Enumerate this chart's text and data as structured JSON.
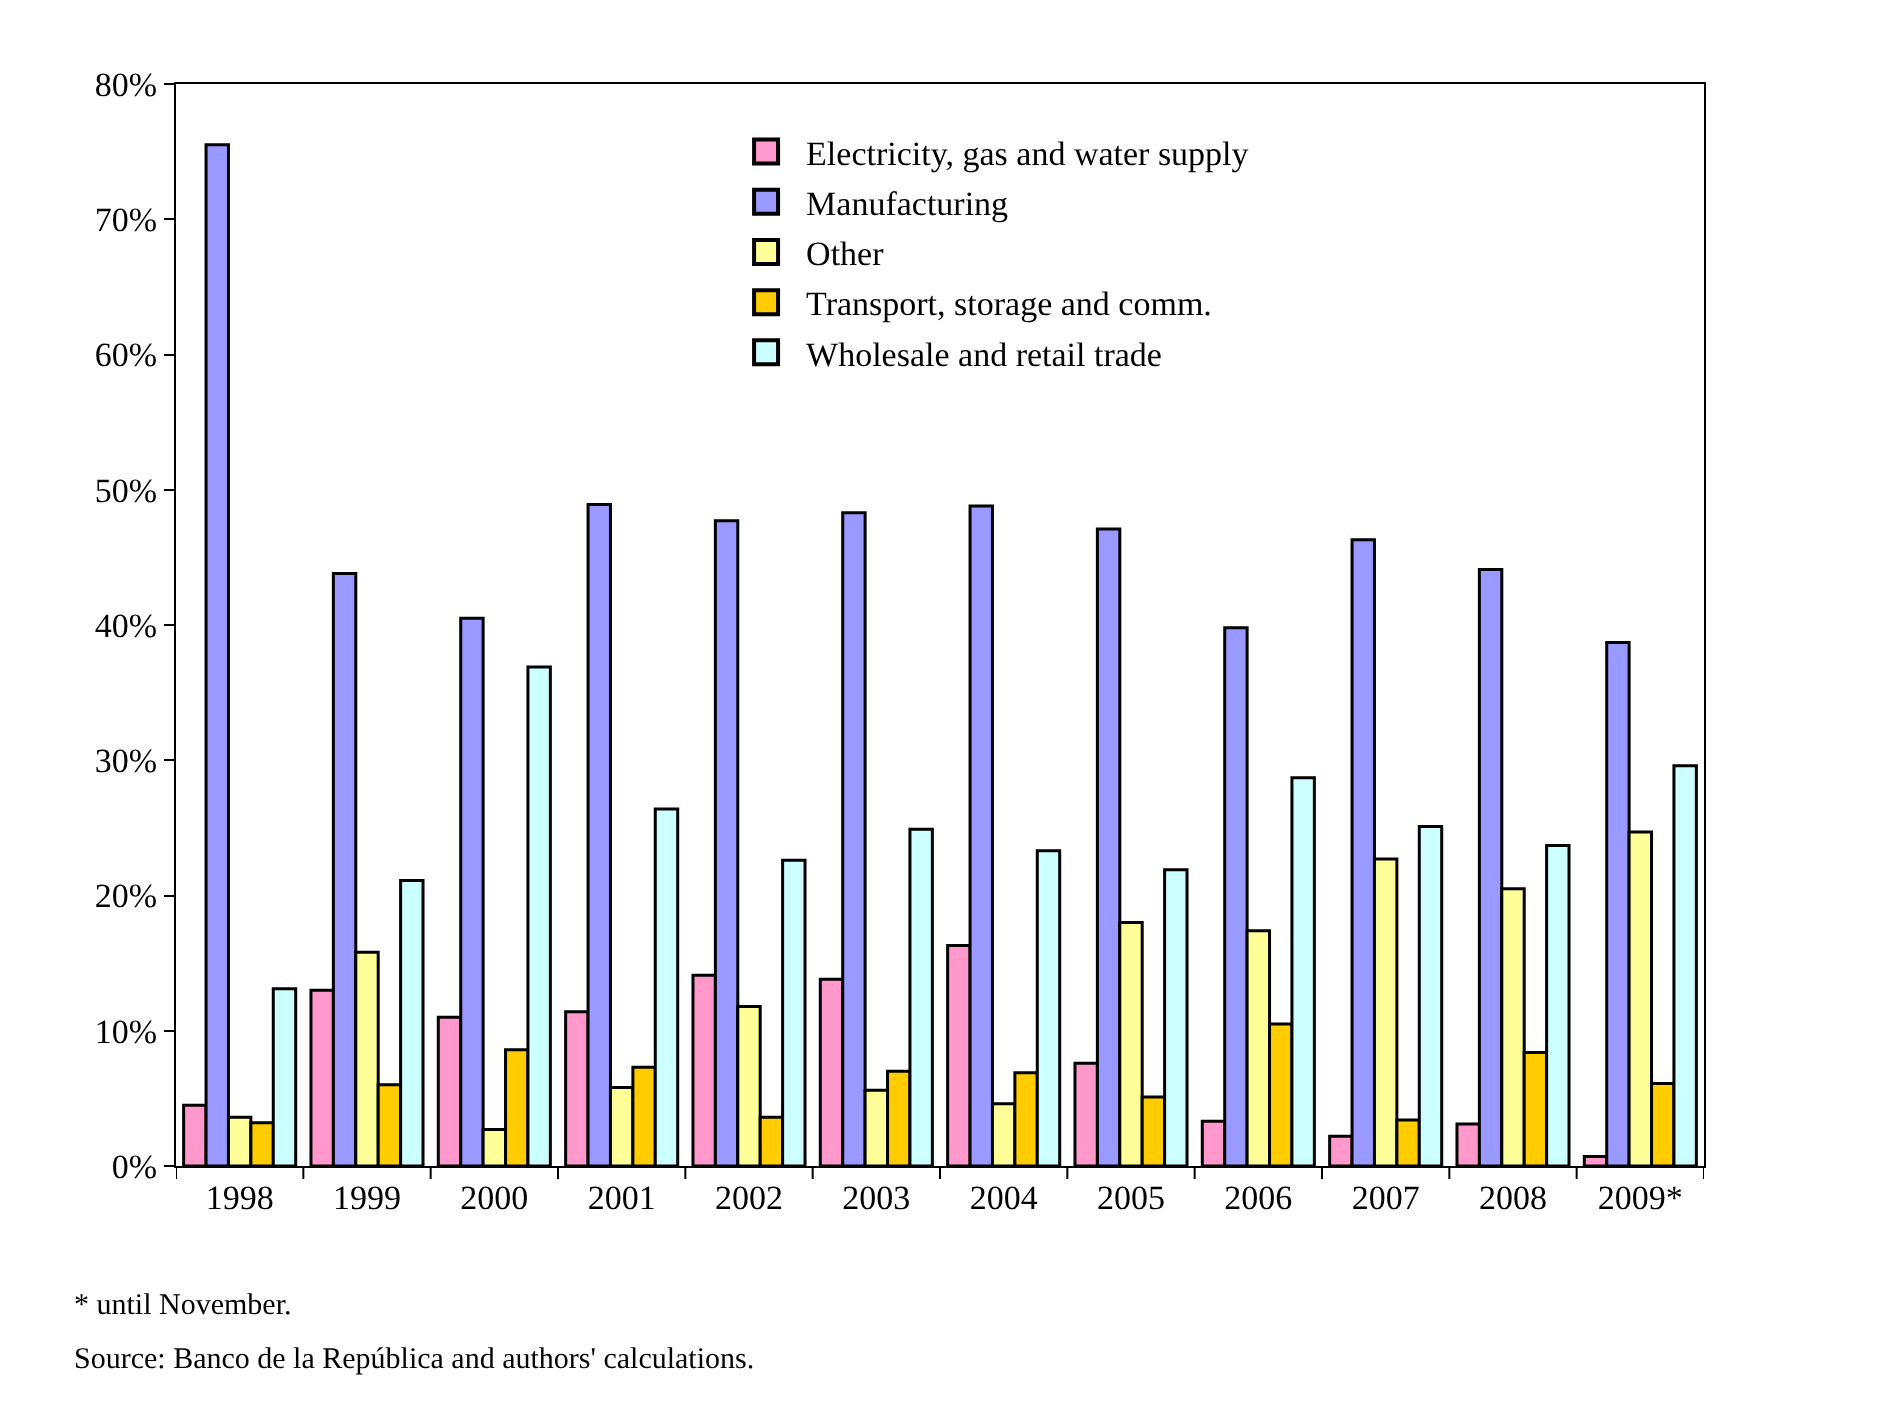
{
  "chart_data": {
    "type": "bar",
    "categories": [
      "1998",
      "1999",
      "2000",
      "2001",
      "2002",
      "2003",
      "2004",
      "2005",
      "2006",
      "2007",
      "2008",
      "2009*"
    ],
    "series": [
      {
        "name": "Electricity, gas and water supply",
        "color": "#ff99cc",
        "values": [
          4.5,
          13.0,
          11.0,
          11.4,
          14.1,
          13.8,
          16.3,
          7.6,
          3.3,
          2.2,
          3.1,
          0.7
        ]
      },
      {
        "name": "Manufacturing",
        "color": "#9999ff",
        "values": [
          75.5,
          43.8,
          40.5,
          48.9,
          47.7,
          48.3,
          48.8,
          47.1,
          39.8,
          46.3,
          44.1,
          38.7
        ]
      },
      {
        "name": "Other",
        "color": "#ffff99",
        "values": [
          3.6,
          15.8,
          2.7,
          5.8,
          11.8,
          5.6,
          4.6,
          18.0,
          17.4,
          22.7,
          20.5,
          24.7
        ]
      },
      {
        "name": "Transport, storage and comm.",
        "color": "#ffcc00",
        "values": [
          3.2,
          6.0,
          8.6,
          7.3,
          3.6,
          7.0,
          6.9,
          5.1,
          10.5,
          3.4,
          8.4,
          6.1
        ]
      },
      {
        "name": "Wholesale and retail trade",
        "color": "#ccffff",
        "values": [
          13.1,
          21.1,
          36.9,
          26.4,
          22.6,
          24.9,
          23.3,
          21.9,
          28.7,
          25.1,
          23.7,
          29.6
        ]
      }
    ],
    "ylim": [
      0,
      80
    ],
    "yticks": [
      {
        "value": 0,
        "label": "0%"
      },
      {
        "value": 10,
        "label": "10%"
      },
      {
        "value": 20,
        "label": "20%"
      },
      {
        "value": 30,
        "label": "30%"
      },
      {
        "value": 40,
        "label": "40%"
      },
      {
        "value": 50,
        "label": "50%"
      },
      {
        "value": 60,
        "label": "60%"
      },
      {
        "value": 70,
        "label": "70%"
      },
      {
        "value": 80,
        "label": "80%"
      }
    ],
    "grid": false,
    "legend": "top",
    "annotations": [
      "* until November.",
      "Source: Banco de la República and authors' calculations."
    ]
  }
}
